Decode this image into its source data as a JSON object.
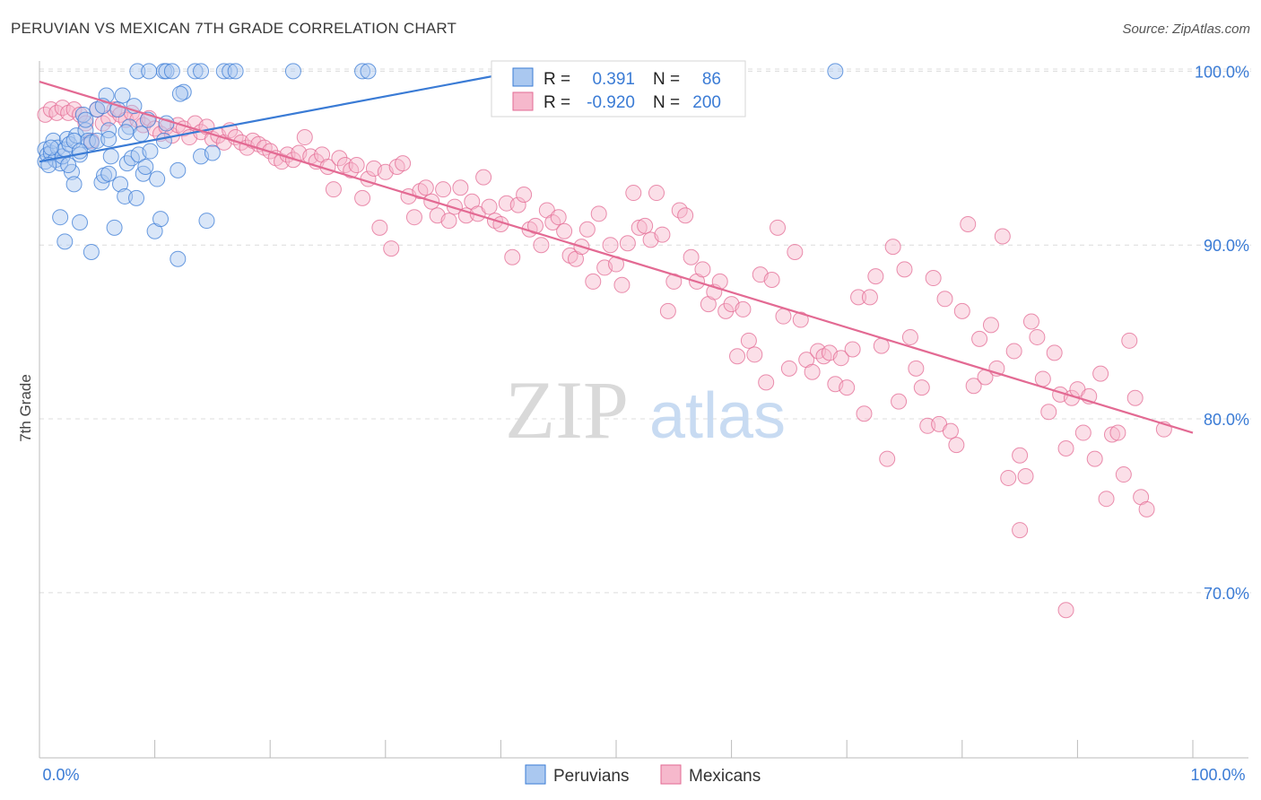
{
  "header": {
    "title": "PERUVIAN VS MEXICAN 7TH GRADE CORRELATION CHART",
    "source": "Source: ZipAtlas.com"
  },
  "watermark": {
    "zip": "ZIP",
    "atlas": "atlas"
  },
  "colors": {
    "blue": "#3a7bd5",
    "blue_fill": "#aac8f0",
    "pink": "#e36a93",
    "pink_fill": "#f6b8cc",
    "axis_label": "#3a7bd5",
    "grid": "#dddddd"
  },
  "stats": {
    "peruvians": {
      "r_label": "R =",
      "r_value": "0.391",
      "n_label": "N =",
      "n_value": "86"
    },
    "mexicans": {
      "r_label": "R =",
      "r_value": "-0.920",
      "n_label": "N =",
      "n_value": "200"
    }
  },
  "chart_data": {
    "type": "scatter",
    "title": "PERUVIAN VS MEXICAN 7TH GRADE CORRELATION CHART",
    "ylabel": "7th Grade",
    "xlabel": "",
    "x_tick_labels": [
      "0.0%",
      "100.0%"
    ],
    "y_tick_labels": [
      "100.0%",
      "90.0%",
      "80.0%",
      "70.0%"
    ],
    "y_ticks": [
      100,
      90,
      80,
      70
    ],
    "xlim": [
      0,
      100
    ],
    "ylim": [
      60.5,
      101
    ],
    "grid": true,
    "legend_position": "bottom-center",
    "series": [
      {
        "name": "Peruvians",
        "color": "#3a7bd5",
        "trend": {
          "x0": 0,
          "y0": 94.8,
          "x1": 40,
          "y1": 99.8
        },
        "points": [
          [
            8.5,
            100
          ],
          [
            9.5,
            100
          ],
          [
            10.8,
            100
          ],
          [
            11,
            100
          ],
          [
            11.5,
            100
          ],
          [
            13.5,
            100
          ],
          [
            14,
            100
          ],
          [
            16,
            100
          ],
          [
            16.5,
            100
          ],
          [
            17,
            100
          ],
          [
            22,
            100
          ],
          [
            28,
            100
          ],
          [
            28.5,
            100
          ],
          [
            69,
            100
          ],
          [
            0.5,
            95.5
          ],
          [
            0.5,
            94.8
          ],
          [
            0.7,
            95.2
          ],
          [
            1,
            95.3
          ],
          [
            1.2,
            96
          ],
          [
            1.4,
            94.9
          ],
          [
            1.6,
            95.6
          ],
          [
            1.8,
            94.7
          ],
          [
            2,
            95.1
          ],
          [
            2.2,
            95.5
          ],
          [
            2.4,
            96.1
          ],
          [
            2.6,
            95.8
          ],
          [
            2.8,
            94.2
          ],
          [
            3,
            93.5
          ],
          [
            3.2,
            96.3
          ],
          [
            3.5,
            95.2
          ],
          [
            3.8,
            97.5
          ],
          [
            4,
            96.6
          ],
          [
            4.2,
            96
          ],
          [
            4.5,
            95.9
          ],
          [
            5,
            97.8
          ],
          [
            5.4,
            93.6
          ],
          [
            5.6,
            94
          ],
          [
            5.8,
            98.6
          ],
          [
            6,
            94.1
          ],
          [
            6,
            96.6
          ],
          [
            6.2,
            95.1
          ],
          [
            6.5,
            91
          ],
          [
            6.8,
            97.8
          ],
          [
            7,
            93.5
          ],
          [
            7.2,
            98.6
          ],
          [
            7.4,
            92.8
          ],
          [
            7.6,
            94.7
          ],
          [
            7.8,
            96.8
          ],
          [
            8,
            95
          ],
          [
            8.2,
            98
          ],
          [
            8.4,
            92.7
          ],
          [
            8.6,
            95.2
          ],
          [
            8.8,
            96.4
          ],
          [
            9,
            94.1
          ],
          [
            9.2,
            94.5
          ],
          [
            9.4,
            97.2
          ],
          [
            9.6,
            95.4
          ],
          [
            10,
            90.8
          ],
          [
            10.2,
            93.8
          ],
          [
            10.5,
            91.5
          ],
          [
            10.8,
            96
          ],
          [
            11,
            97
          ],
          [
            12,
            94.3
          ],
          [
            12.5,
            98.8
          ],
          [
            14,
            95.1
          ],
          [
            14.5,
            91.4
          ],
          [
            15,
            95.3
          ],
          [
            1.8,
            91.6
          ],
          [
            2.2,
            90.2
          ],
          [
            3.5,
            91.3
          ],
          [
            4.5,
            89.6
          ],
          [
            5,
            96
          ],
          [
            12,
            89.2
          ],
          [
            2.5,
            94.6
          ],
          [
            3,
            96
          ],
          [
            1,
            95.6
          ],
          [
            0.8,
            94.6
          ],
          [
            7.5,
            96.5
          ],
          [
            4,
            97.2
          ],
          [
            6,
            96.1
          ],
          [
            3.5,
            95.4
          ],
          [
            5.5,
            98
          ],
          [
            12.2,
            98.7
          ]
        ]
      },
      {
        "name": "Mexicans",
        "color": "#e36a93",
        "trend": {
          "x0": 0,
          "y0": 99.4,
          "x1": 100,
          "y1": 79.2
        },
        "points": [
          [
            0.5,
            97.5
          ],
          [
            1,
            97.8
          ],
          [
            1.5,
            97.6
          ],
          [
            2,
            97.9
          ],
          [
            2.5,
            97.6
          ],
          [
            3,
            97.8
          ],
          [
            3.5,
            97.5
          ],
          [
            4,
            97
          ],
          [
            4.5,
            96
          ],
          [
            5,
            97.8
          ],
          [
            5.5,
            97
          ],
          [
            6,
            97.3
          ],
          [
            6.5,
            97.8
          ],
          [
            7,
            97.5
          ],
          [
            7.5,
            97.2
          ],
          [
            8,
            97.6
          ],
          [
            8.5,
            97.2
          ],
          [
            9,
            96.9
          ],
          [
            9.5,
            97.3
          ],
          [
            10,
            96.7
          ],
          [
            10.5,
            96.4
          ],
          [
            11,
            96.8
          ],
          [
            11.5,
            96.3
          ],
          [
            12,
            96.9
          ],
          [
            12.5,
            96.7
          ],
          [
            13,
            96.2
          ],
          [
            13.5,
            97
          ],
          [
            14,
            96.5
          ],
          [
            14.5,
            96.8
          ],
          [
            15,
            96.1
          ],
          [
            15.5,
            96.3
          ],
          [
            16,
            95.9
          ],
          [
            16.5,
            96.6
          ],
          [
            17,
            96.2
          ],
          [
            17.5,
            95.9
          ],
          [
            18,
            95.6
          ],
          [
            18.5,
            96
          ],
          [
            19,
            95.8
          ],
          [
            19.5,
            95.6
          ],
          [
            20,
            95.4
          ],
          [
            20.5,
            95
          ],
          [
            21,
            94.8
          ],
          [
            21.5,
            95.2
          ],
          [
            22,
            94.9
          ],
          [
            22.5,
            95.3
          ],
          [
            23,
            96.2
          ],
          [
            23.5,
            95.1
          ],
          [
            24,
            94.8
          ],
          [
            24.5,
            95.2
          ],
          [
            25,
            94.5
          ],
          [
            25.5,
            93.2
          ],
          [
            26,
            95
          ],
          [
            26.5,
            94.6
          ],
          [
            27,
            94.3
          ],
          [
            27.5,
            94.6
          ],
          [
            28,
            92.7
          ],
          [
            28.5,
            93.8
          ],
          [
            29,
            94.4
          ],
          [
            29.5,
            91
          ],
          [
            30,
            94.2
          ],
          [
            30.5,
            89.8
          ],
          [
            31,
            94.5
          ],
          [
            31.5,
            94.7
          ],
          [
            32,
            92.8
          ],
          [
            32.5,
            91.6
          ],
          [
            33,
            93.1
          ],
          [
            33.5,
            93.3
          ],
          [
            34,
            92.5
          ],
          [
            34.5,
            91.7
          ],
          [
            35,
            93.2
          ],
          [
            35.5,
            91.4
          ],
          [
            36,
            92.2
          ],
          [
            36.5,
            93.3
          ],
          [
            37,
            91.7
          ],
          [
            37.5,
            92.5
          ],
          [
            38,
            91.8
          ],
          [
            38.5,
            93.9
          ],
          [
            39,
            92.2
          ],
          [
            39.5,
            91.4
          ],
          [
            40,
            91.2
          ],
          [
            40.5,
            92.4
          ],
          [
            41,
            89.3
          ],
          [
            41.5,
            92.3
          ],
          [
            42,
            92.9
          ],
          [
            42.5,
            90.9
          ],
          [
            43,
            91.1
          ],
          [
            43.5,
            90
          ],
          [
            44,
            92
          ],
          [
            44.5,
            91.3
          ],
          [
            45,
            91.6
          ],
          [
            45.5,
            90.8
          ],
          [
            46,
            89.4
          ],
          [
            46.5,
            89.2
          ],
          [
            47,
            89.9
          ],
          [
            47.5,
            90.9
          ],
          [
            48,
            87.9
          ],
          [
            48.5,
            91.8
          ],
          [
            49,
            88.7
          ],
          [
            49.5,
            90
          ],
          [
            50,
            88.9
          ],
          [
            50.5,
            87.7
          ],
          [
            51,
            90.1
          ],
          [
            51.5,
            93
          ],
          [
            52,
            91
          ],
          [
            52.5,
            91.1
          ],
          [
            53,
            90.3
          ],
          [
            53.5,
            93
          ],
          [
            54,
            90.6
          ],
          [
            54.5,
            86.2
          ],
          [
            55,
            87.9
          ],
          [
            55.5,
            92
          ],
          [
            56,
            91.7
          ],
          [
            56.5,
            89.3
          ],
          [
            57,
            87.9
          ],
          [
            57.5,
            88.6
          ],
          [
            58,
            86.6
          ],
          [
            58.5,
            87.3
          ],
          [
            59,
            87.9
          ],
          [
            59.5,
            86.2
          ],
          [
            60,
            86.6
          ],
          [
            60.5,
            83.6
          ],
          [
            61,
            86.3
          ],
          [
            61.5,
            84.5
          ],
          [
            62,
            83.7
          ],
          [
            62.5,
            88.3
          ],
          [
            63,
            82.1
          ],
          [
            63.5,
            88
          ],
          [
            64,
            91
          ],
          [
            64.5,
            85.9
          ],
          [
            65,
            82.9
          ],
          [
            65.5,
            89.6
          ],
          [
            66,
            85.7
          ],
          [
            66.5,
            83.4
          ],
          [
            67,
            82.7
          ],
          [
            67.5,
            83.9
          ],
          [
            68,
            83.6
          ],
          [
            68.5,
            83.8
          ],
          [
            69,
            82
          ],
          [
            69.5,
            83.5
          ],
          [
            70,
            81.8
          ],
          [
            70.5,
            84
          ],
          [
            71,
            87
          ],
          [
            71.5,
            80.3
          ],
          [
            72,
            87
          ],
          [
            72.5,
            88.2
          ],
          [
            73,
            84.2
          ],
          [
            73.5,
            77.7
          ],
          [
            74,
            89.9
          ],
          [
            74.5,
            81
          ],
          [
            75,
            88.6
          ],
          [
            75.5,
            84.7
          ],
          [
            76,
            82.9
          ],
          [
            76.5,
            81.8
          ],
          [
            77,
            79.6
          ],
          [
            77.5,
            88.1
          ],
          [
            78,
            79.7
          ],
          [
            78.5,
            86.9
          ],
          [
            79,
            79.3
          ],
          [
            79.5,
            78.5
          ],
          [
            80,
            86.2
          ],
          [
            80.5,
            91.2
          ],
          [
            81,
            81.9
          ],
          [
            81.5,
            84.6
          ],
          [
            82,
            82.4
          ],
          [
            82.5,
            85.4
          ],
          [
            83,
            82.9
          ],
          [
            83.5,
            90.5
          ],
          [
            84,
            76.6
          ],
          [
            84.5,
            83.9
          ],
          [
            85,
            77.9
          ],
          [
            85.5,
            76.7
          ],
          [
            86,
            85.6
          ],
          [
            86.5,
            84.7
          ],
          [
            87,
            82.3
          ],
          [
            87.5,
            80.4
          ],
          [
            88,
            83.8
          ],
          [
            88.5,
            81.4
          ],
          [
            89,
            78.3
          ],
          [
            89.5,
            81.2
          ],
          [
            90,
            81.7
          ],
          [
            90.5,
            79.2
          ],
          [
            91,
            81.3
          ],
          [
            91.5,
            77.7
          ],
          [
            92,
            82.6
          ],
          [
            92.5,
            75.4
          ],
          [
            93,
            79.1
          ],
          [
            93.5,
            79.2
          ],
          [
            94,
            76.8
          ],
          [
            94.5,
            84.5
          ],
          [
            95,
            81.2
          ],
          [
            95.5,
            75.5
          ],
          [
            96,
            74.8
          ],
          [
            89,
            69
          ],
          [
            85,
            73.6
          ],
          [
            97.5,
            79.4
          ]
        ]
      }
    ]
  },
  "legend": {
    "items": [
      {
        "label": "Peruvians"
      },
      {
        "label": "Mexicans"
      }
    ]
  }
}
